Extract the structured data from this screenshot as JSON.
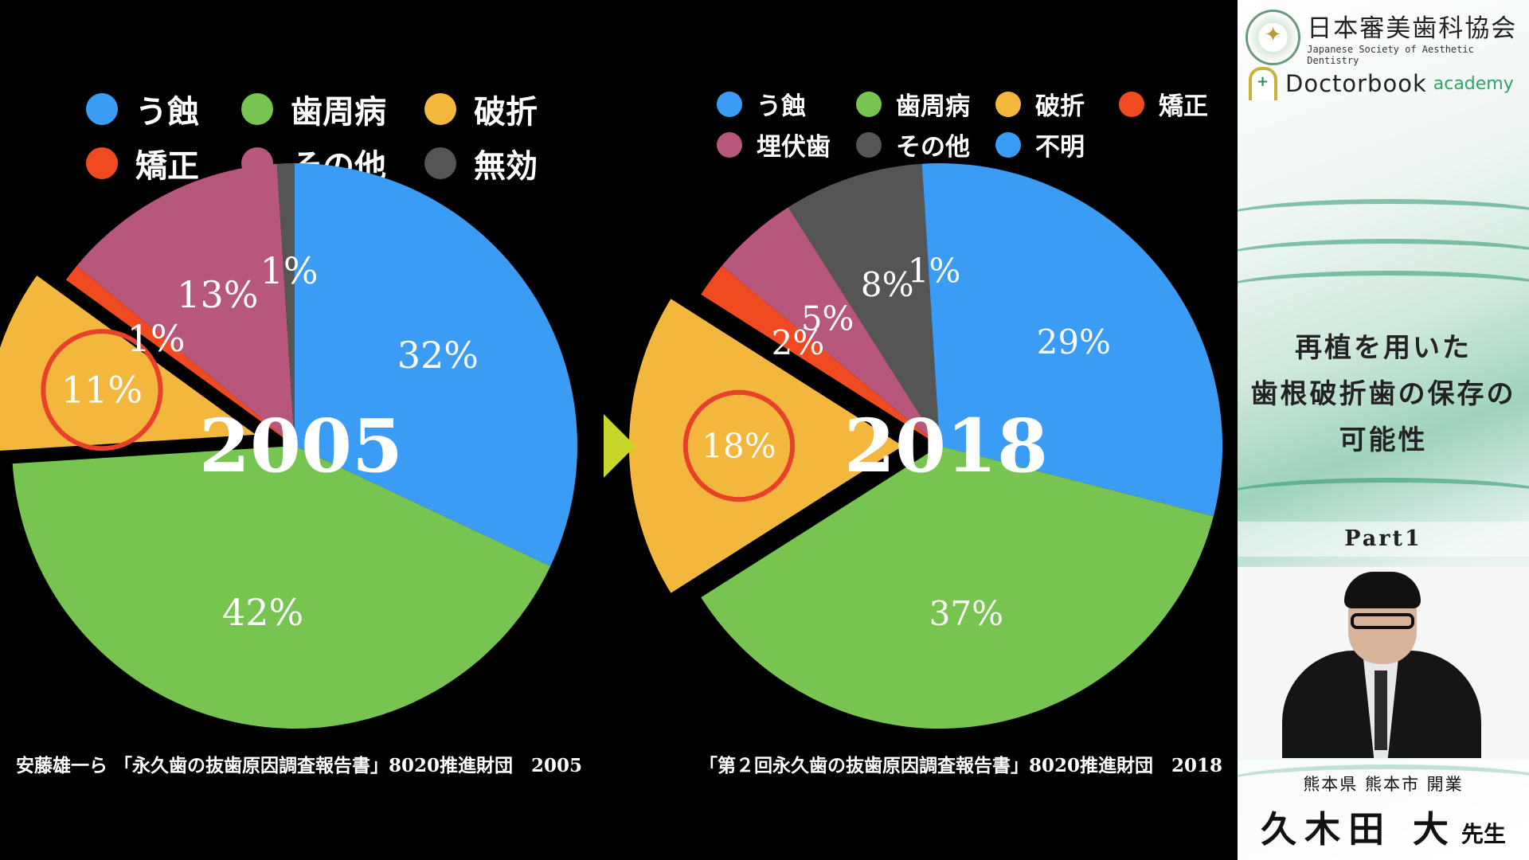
{
  "chart_data": [
    {
      "type": "pie",
      "title": "2005",
      "legend": [
        "う蝕",
        "歯周病",
        "破折",
        "矯正",
        "その他",
        "無効"
      ],
      "legend_position": "top",
      "slices": [
        {
          "label": "う蝕",
          "value": 32,
          "display": "32%",
          "color": "#3b9cf5"
        },
        {
          "label": "歯周病",
          "value": 42,
          "display": "42%",
          "color": "#78c450"
        },
        {
          "label": "破折",
          "value": 11,
          "display": "11%",
          "color": "#f4b73d",
          "exploded": true,
          "highlighted": true
        },
        {
          "label": "矯正",
          "value": 1,
          "display": "1%",
          "color": "#f04a20"
        },
        {
          "label": "その他",
          "value": 13,
          "display": "13%",
          "color": "#b8577c"
        },
        {
          "label": "無効",
          "value": 1,
          "display": "1%",
          "color": "#555555"
        }
      ],
      "citation": "安藤雄一ら 「永久歯の抜歯原因調査報告書」8020推進財団　2005"
    },
    {
      "type": "pie",
      "title": "2018",
      "legend": [
        "う蝕",
        "歯周病",
        "破折",
        "矯正",
        "埋伏歯",
        "その他",
        "不明"
      ],
      "legend_position": "top",
      "slices": [
        {
          "label": "う蝕",
          "value": 29,
          "display": "29%",
          "color": "#3b9cf5"
        },
        {
          "label": "歯周病",
          "value": 37,
          "display": "37%",
          "color": "#78c450"
        },
        {
          "label": "破折",
          "value": 18,
          "display": "18%",
          "color": "#f4b73d",
          "exploded": true,
          "highlighted": true
        },
        {
          "label": "矯正",
          "value": 2,
          "display": "2%",
          "color": "#f04a20"
        },
        {
          "label": "埋伏歯",
          "value": 5,
          "display": "5%",
          "color": "#b8577c"
        },
        {
          "label": "その他",
          "value": 8,
          "display": "8%",
          "color": "#555555"
        },
        {
          "label": "不明",
          "value": 1,
          "display": "1%",
          "color": "#3b9cf5"
        }
      ],
      "citation": "「第２回永久歯の抜歯原因調査報告書」8020推進財団　2018"
    }
  ],
  "arrow_color": "#c8d629",
  "highlight_ring_color": "#e8402a",
  "sidebar": {
    "society_name": "日本審美歯科協会",
    "society_en": "Japanese Society of Aesthetic Dentistry",
    "brand": "Doctorbook",
    "brand_sub": "academy",
    "title_lines": [
      "再植を用いた",
      "歯根破折歯の保存の",
      "可能性"
    ],
    "part": "Part1",
    "practice": "熊本県 熊本市 開業",
    "doctor_name": "久木田 大",
    "honorific": "先生"
  }
}
